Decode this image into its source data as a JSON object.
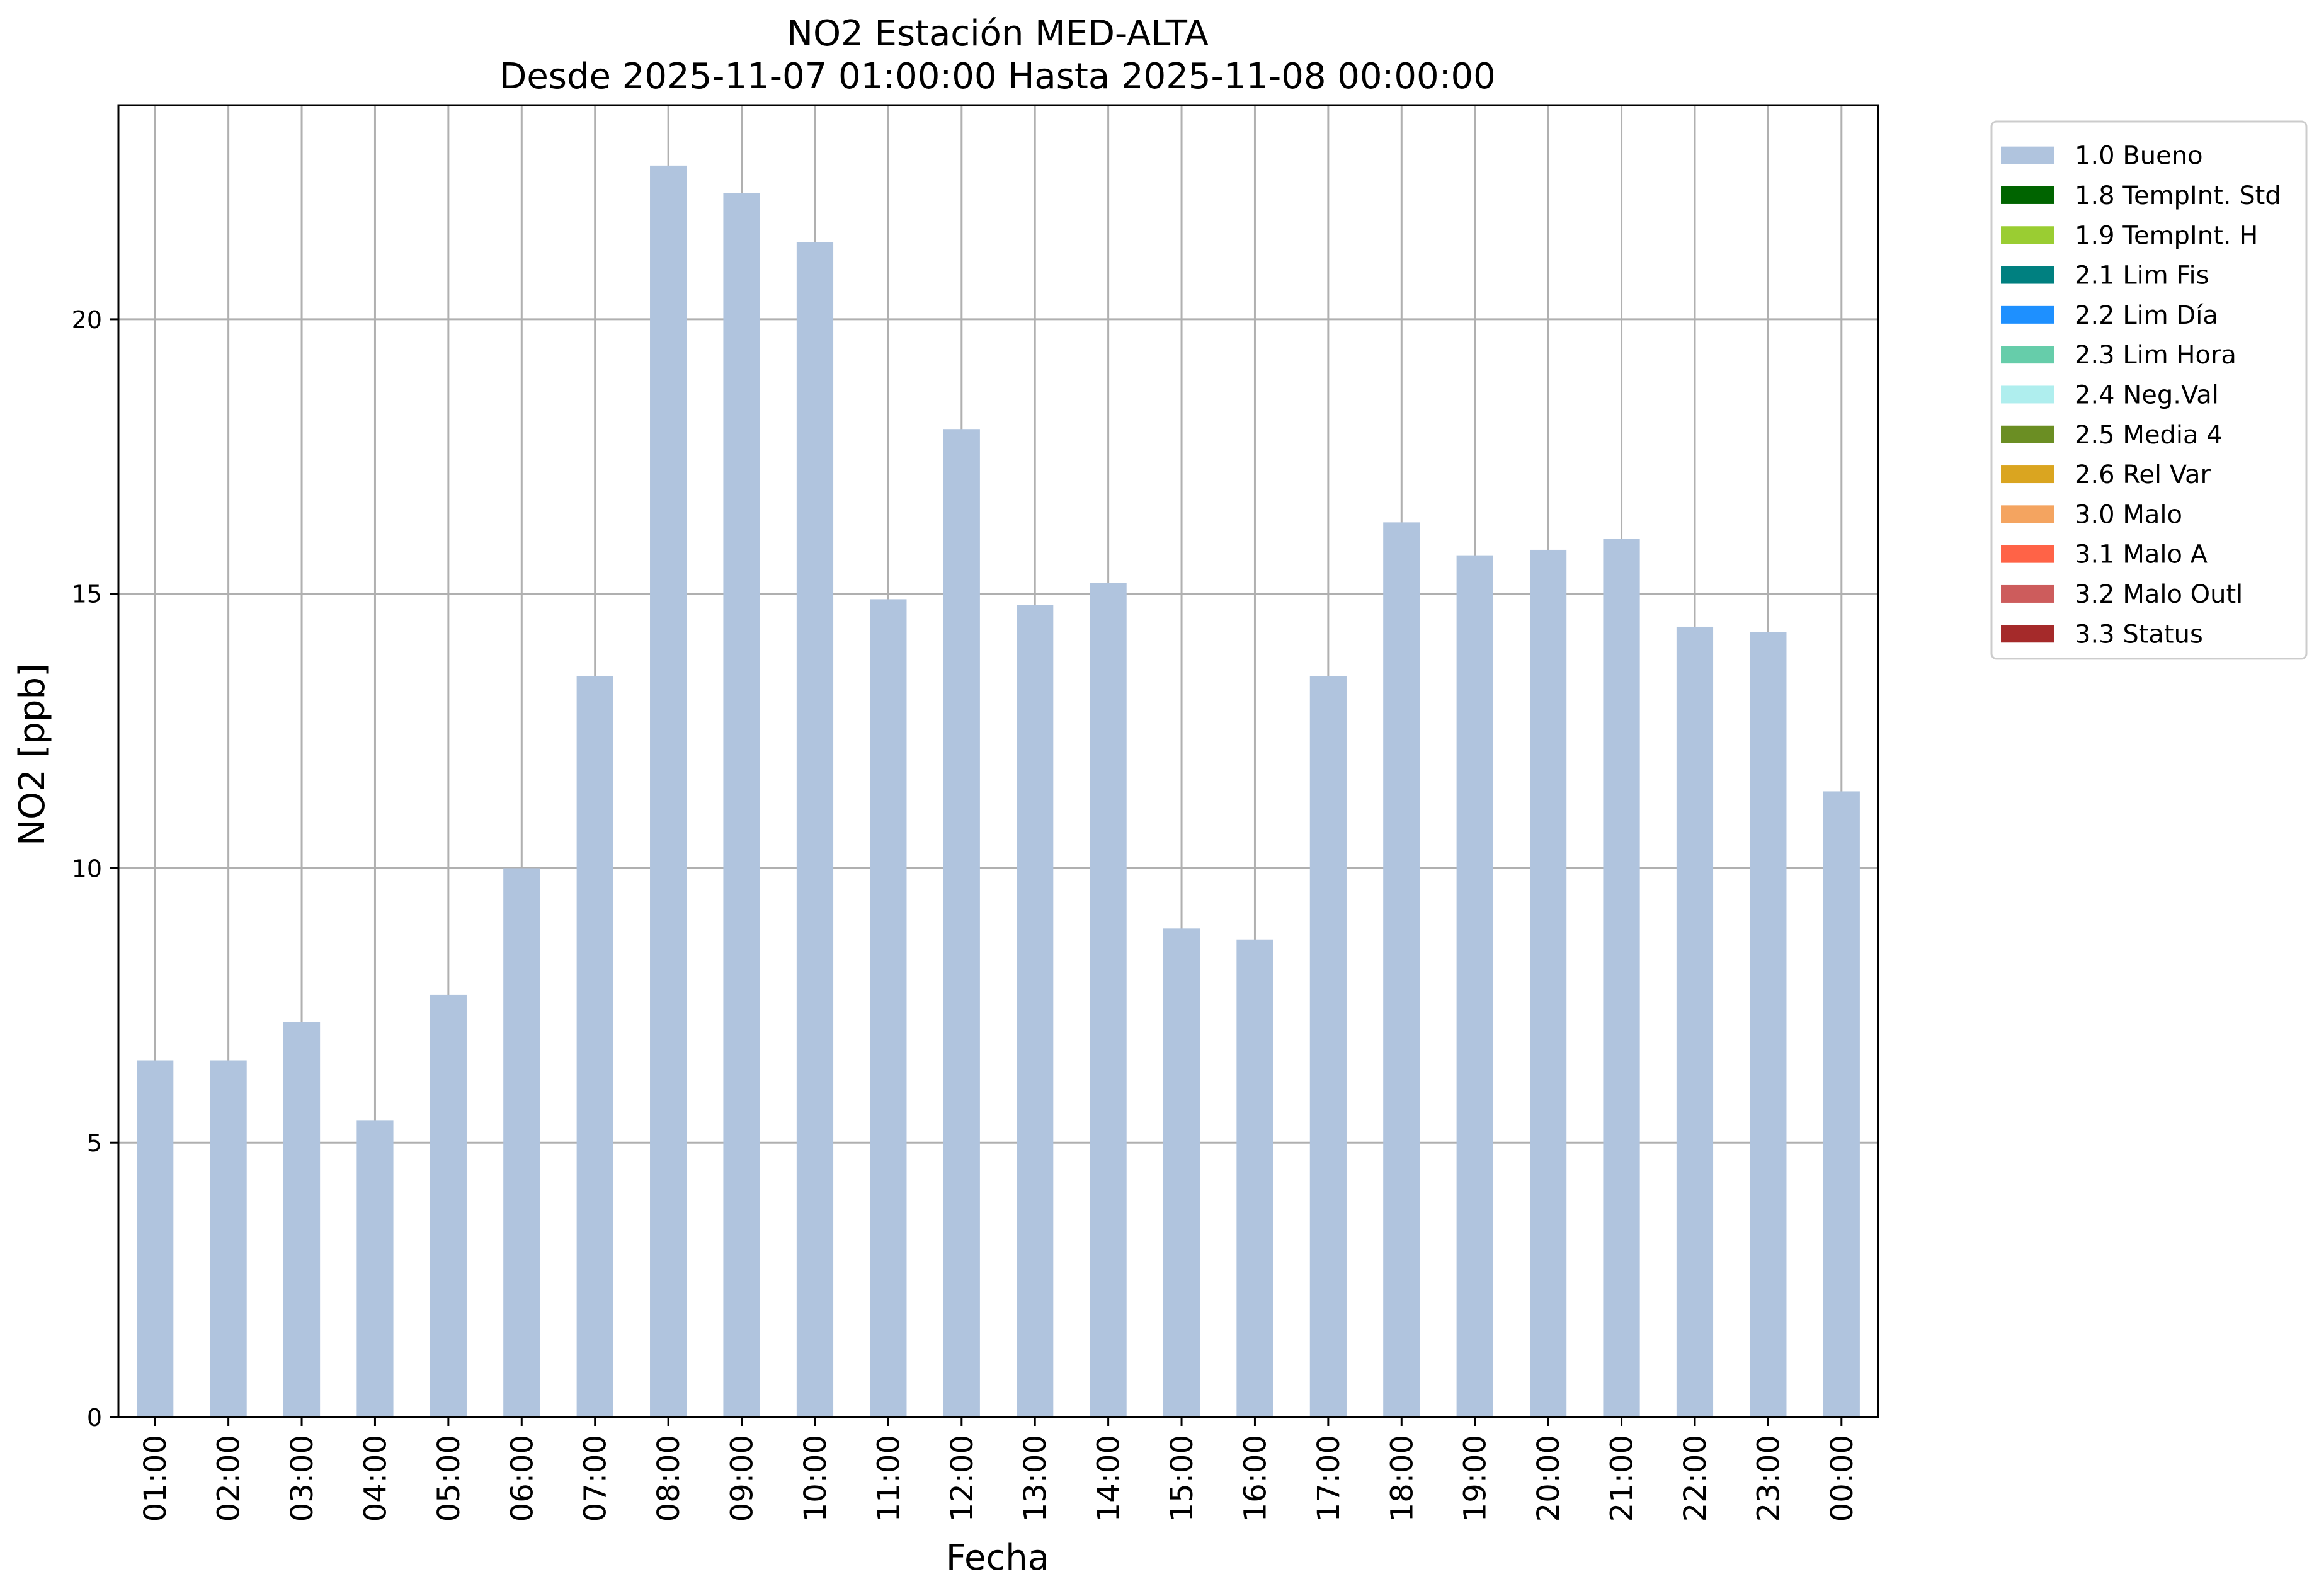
{
  "chart_data": {
    "type": "bar",
    "title": "NO2 Estación MED-ALTA",
    "subtitle": "Desde 2025-11-07 01:00:00 Hasta 2025-11-08 00:00:00",
    "xlabel": "Fecha",
    "ylabel": "NO2 [ppb]",
    "ylim": [
      0,
      23.9
    ],
    "yticks": [
      0,
      5,
      10,
      15,
      20
    ],
    "grid": true,
    "legend_position": "outside-right-top",
    "categories": [
      "01:00",
      "02:00",
      "03:00",
      "04:00",
      "05:00",
      "06:00",
      "07:00",
      "08:00",
      "09:00",
      "10:00",
      "11:00",
      "12:00",
      "13:00",
      "14:00",
      "15:00",
      "16:00",
      "17:00",
      "18:00",
      "19:00",
      "20:00",
      "21:00",
      "22:00",
      "23:00",
      "00:00"
    ],
    "series": [
      {
        "name": "1.0 Bueno",
        "color": "#b0c4de",
        "values": [
          6.5,
          6.5,
          7.2,
          5.4,
          7.7,
          10.0,
          13.5,
          22.8,
          22.3,
          21.4,
          14.9,
          18.0,
          14.8,
          15.2,
          8.9,
          8.7,
          13.5,
          16.3,
          15.7,
          15.8,
          16.0,
          14.4,
          14.3,
          11.4
        ]
      }
    ],
    "legend": [
      {
        "label": "1.0 Bueno",
        "color": "#b0c4de"
      },
      {
        "label": "1.8 TempInt. Std",
        "color": "#006400"
      },
      {
        "label": "1.9 TempInt. H",
        "color": "#9acd32"
      },
      {
        "label": "2.1 Lim Fis",
        "color": "#008080"
      },
      {
        "label": "2.2 Lim Día",
        "color": "#1e90ff"
      },
      {
        "label": "2.3 Lim Hora",
        "color": "#66cdaa"
      },
      {
        "label": "2.4 Neg.Val",
        "color": "#afeeee"
      },
      {
        "label": "2.5 Media 4",
        "color": "#6b8e23"
      },
      {
        "label": "2.6 Rel Var",
        "color": "#daa520"
      },
      {
        "label": "3.0 Malo",
        "color": "#f4a460"
      },
      {
        "label": "3.1 Malo A",
        "color": "#ff6347"
      },
      {
        "label": "3.2 Malo Outl",
        "color": "#cd5c5c"
      },
      {
        "label": "3.3 Status",
        "color": "#a52a2a"
      }
    ]
  }
}
